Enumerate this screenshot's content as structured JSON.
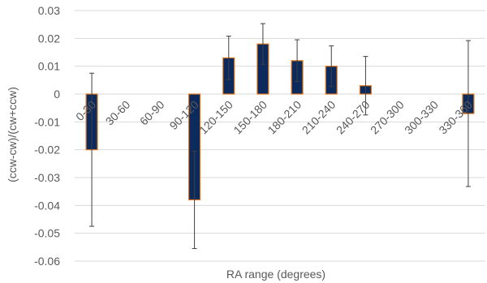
{
  "chart_data": {
    "type": "bar",
    "title": "",
    "xlabel": "RA range (degrees)",
    "ylabel": "(ccw-cw)/(cw+ccw)",
    "ylim": [
      -0.06,
      0.03
    ],
    "yticks": [
      "0.03",
      "0.02",
      "0.01",
      "0",
      "-0.01",
      "-0.02",
      "-0.03",
      "-0.04",
      "-0.05",
      "-0.06"
    ],
    "grid": true,
    "categories": [
      "0-30",
      "30-60",
      "60-90",
      "90-120",
      "120-150",
      "150-180",
      "180-210",
      "210-240",
      "240-270",
      "270-300",
      "300-330",
      "330-360"
    ],
    "values": [
      -0.02,
      null,
      null,
      -0.038,
      0.013,
      0.018,
      0.012,
      0.01,
      0.003,
      null,
      null,
      -0.007
    ],
    "error_bars": [
      0.0275,
      null,
      null,
      0.0175,
      0.0078,
      0.0073,
      0.0075,
      0.0073,
      0.0105,
      null,
      null,
      0.0262
    ],
    "bar_fill_color": "#0d2a5c",
    "bar_edge_color": "#e07a20",
    "grid_color": "#d9d9d9"
  }
}
